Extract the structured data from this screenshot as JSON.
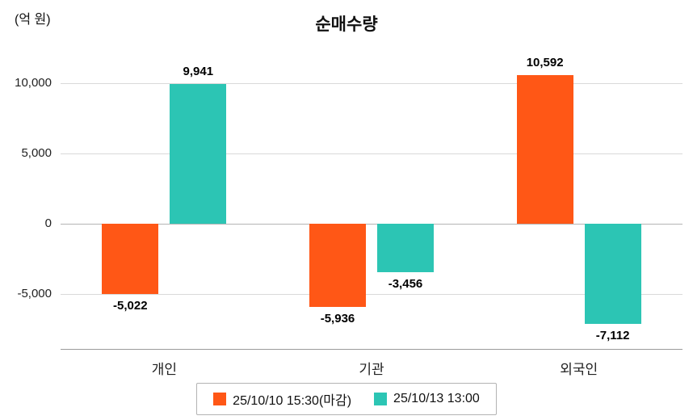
{
  "title": "순매수량",
  "unit_label": "(억 원)",
  "legend": [
    {
      "label": "25/10/10 15:30(마감)",
      "color": "#ff5716"
    },
    {
      "label": "25/10/13 13:00",
      "color": "#2cc5b4"
    }
  ],
  "chart_data": {
    "type": "bar",
    "title": "순매수량",
    "ylabel": "(억 원)",
    "categories": [
      "개인",
      "기관",
      "외국인"
    ],
    "series": [
      {
        "name": "25/10/10 15:30(마감)",
        "color": "#ff5716",
        "values": [
          -5022,
          -5936,
          10592
        ]
      },
      {
        "name": "25/10/13 13:00",
        "color": "#2cc5b4",
        "values": [
          9941,
          -3456,
          -7112
        ]
      }
    ],
    "value_labels": [
      [
        "-5,022",
        "-5,936",
        "10,592"
      ],
      [
        "9,941",
        "-3,456",
        "-7,112"
      ]
    ],
    "yticks": [
      10000,
      5000,
      0,
      -5000
    ],
    "ytick_labels": [
      "10,000",
      "5,000",
      "0",
      "-5,000"
    ],
    "ylim": [
      -8800,
      12500
    ],
    "grid": true,
    "legend_position": "bottom"
  }
}
